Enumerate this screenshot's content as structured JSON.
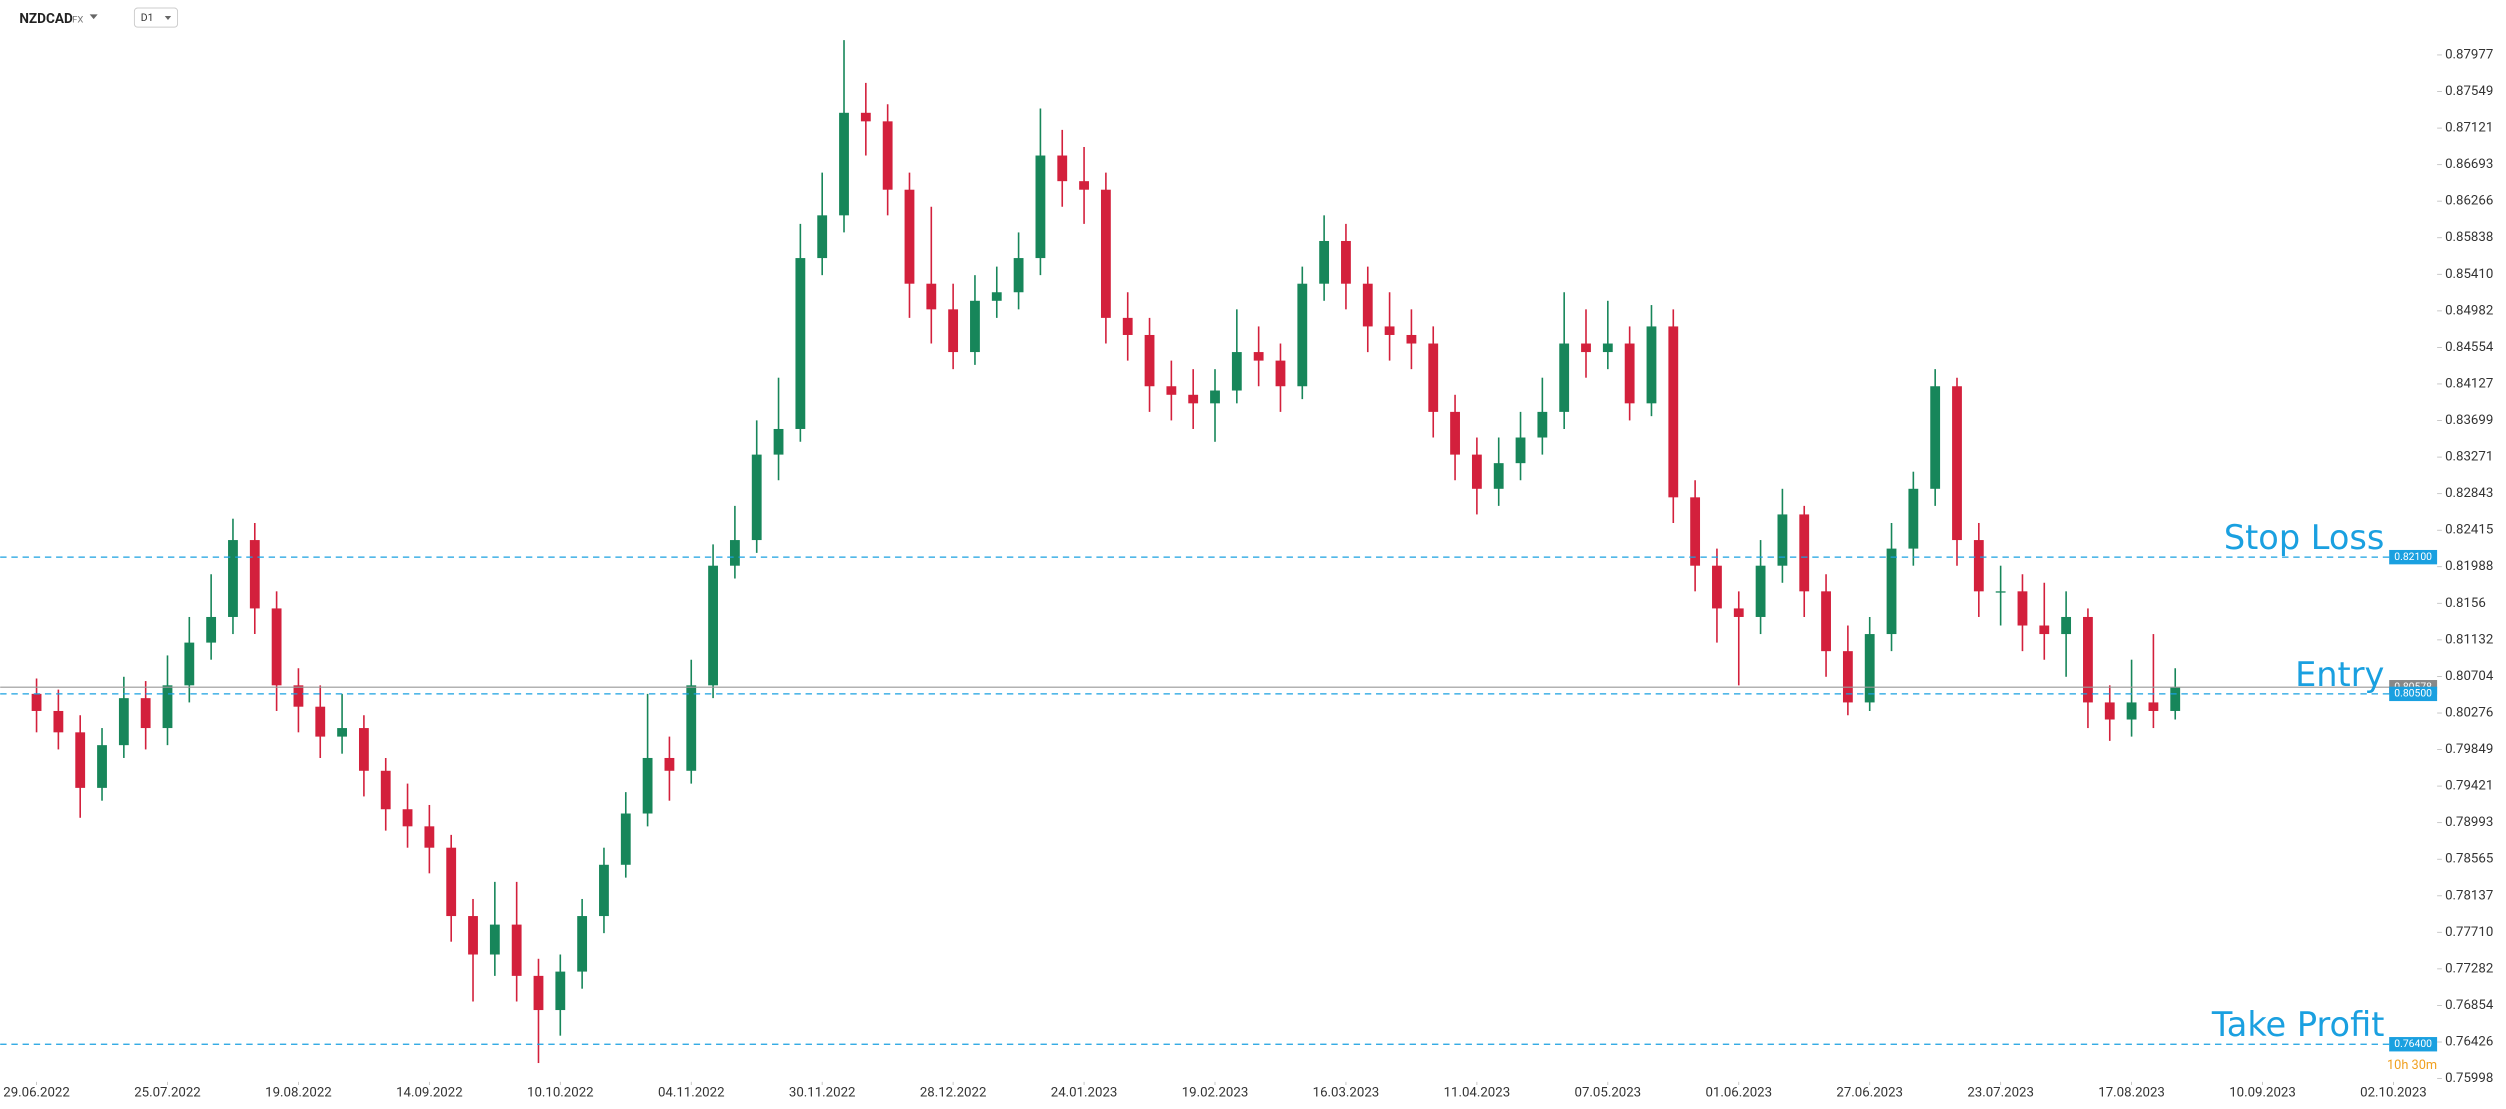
{
  "chart_data": {
    "type": "candlestick",
    "symbol": "NZDCAD",
    "market": "FX",
    "timeframe": "D1",
    "countdown": "10h 30m",
    "up_color": "#17865a",
    "down_color": "#d3203c",
    "xlim": [
      -5,
      330
    ],
    "ylim": [
      0.7596,
      0.8862
    ],
    "xticks": [
      {
        "value": 0,
        "label": "29.06.2022"
      },
      {
        "value": 18,
        "label": "25.07.2022"
      },
      {
        "value": 36,
        "label": "19.08.2022"
      },
      {
        "value": 54,
        "label": "14.09.2022"
      },
      {
        "value": 72,
        "label": "10.10.2022"
      },
      {
        "value": 90,
        "label": "04.11.2022"
      },
      {
        "value": 108,
        "label": "30.11.2022"
      },
      {
        "value": 126,
        "label": "28.12.2022"
      },
      {
        "value": 144,
        "label": "24.01.2023"
      },
      {
        "value": 162,
        "label": "19.02.2023"
      },
      {
        "value": 180,
        "label": "16.03.2023"
      },
      {
        "value": 198,
        "label": "11.04.2023"
      },
      {
        "value": 216,
        "label": "07.05.2023"
      },
      {
        "value": 234,
        "label": "01.06.2023"
      },
      {
        "value": 252,
        "label": "27.06.2023"
      },
      {
        "value": 270,
        "label": "23.07.2023"
      },
      {
        "value": 288,
        "label": "17.08.2023"
      },
      {
        "value": 306,
        "label": "10.09.2023"
      },
      {
        "value": 324,
        "label": "02.10.2023"
      }
    ],
    "yticks": [
      0.87977,
      0.87549,
      0.87121,
      0.86693,
      0.86266,
      0.85838,
      {
        "value": 0.8541,
        "label": "0.85410"
      },
      0.84982,
      0.84554,
      0.84127,
      0.83699,
      0.83271,
      0.82843,
      0.82415,
      0.81988,
      0.8156,
      0.81132,
      0.80704,
      0.80276,
      0.79849,
      0.79421,
      0.78993,
      0.78565,
      0.78137,
      {
        "value": 0.7771,
        "label": "0.77710"
      },
      0.77282,
      0.76854,
      0.76426,
      0.75998
    ],
    "candles": {
      "x": [
        0,
        3,
        6,
        9,
        12,
        15,
        18,
        21,
        24,
        27,
        30,
        33,
        36,
        39,
        42,
        45,
        48,
        51,
        54,
        57,
        60,
        63,
        66,
        69,
        72,
        75,
        78,
        81,
        84,
        87,
        90,
        93,
        96,
        99,
        102,
        105,
        108,
        111,
        114,
        117,
        120,
        123,
        126,
        129,
        132,
        135,
        138,
        141,
        144,
        147,
        150,
        153,
        156,
        159,
        162,
        165,
        168,
        171,
        174,
        177,
        180,
        183,
        186,
        189,
        192,
        195,
        198,
        201,
        204,
        207,
        210,
        213,
        216,
        219,
        222,
        225,
        228,
        231,
        234,
        237,
        240,
        243,
        246,
        249,
        252,
        255,
        258,
        261,
        264,
        267,
        270,
        273,
        276,
        279,
        282,
        285,
        288,
        291,
        294
      ],
      "open": [
        0.805,
        0.803,
        0.8005,
        0.794,
        0.799,
        0.8045,
        0.801,
        0.806,
        0.811,
        0.814,
        0.823,
        0.815,
        0.806,
        0.8035,
        0.8,
        0.801,
        0.796,
        0.7915,
        0.7895,
        0.787,
        0.779,
        0.7745,
        0.778,
        0.772,
        0.768,
        0.7725,
        0.779,
        0.785,
        0.791,
        0.7975,
        0.796,
        0.806,
        0.82,
        0.823,
        0.833,
        0.836,
        0.856,
        0.861,
        0.873,
        0.872,
        0.864,
        0.853,
        0.85,
        0.845,
        0.851,
        0.852,
        0.856,
        0.868,
        0.865,
        0.864,
        0.849,
        0.847,
        0.841,
        0.84,
        0.839,
        0.8405,
        0.845,
        0.844,
        0.841,
        0.853,
        0.858,
        0.853,
        0.848,
        0.847,
        0.846,
        0.838,
        0.833,
        0.829,
        0.832,
        0.835,
        0.838,
        0.846,
        0.845,
        0.846,
        0.839,
        0.848,
        0.828,
        0.82,
        0.815,
        0.814,
        0.82,
        0.826,
        0.817,
        0.81,
        0.804,
        0.812,
        0.822,
        0.829,
        0.841,
        0.823,
        0.817,
        0.817,
        0.813,
        0.812,
        0.814,
        0.804,
        0.802,
        0.804,
        0.803
      ],
      "high": [
        0.8068,
        0.8055,
        0.8025,
        0.801,
        0.807,
        0.8065,
        0.8095,
        0.814,
        0.819,
        0.8255,
        0.825,
        0.817,
        0.808,
        0.806,
        0.805,
        0.8025,
        0.7975,
        0.7945,
        0.792,
        0.7885,
        0.781,
        0.783,
        0.783,
        0.774,
        0.7745,
        0.781,
        0.787,
        0.7935,
        0.805,
        0.8,
        0.809,
        0.8225,
        0.827,
        0.837,
        0.842,
        0.86,
        0.866,
        0.8815,
        0.8765,
        0.874,
        0.866,
        0.862,
        0.853,
        0.854,
        0.855,
        0.859,
        0.8735,
        0.871,
        0.869,
        0.866,
        0.852,
        0.849,
        0.844,
        0.843,
        0.843,
        0.85,
        0.848,
        0.846,
        0.855,
        0.861,
        0.86,
        0.855,
        0.852,
        0.85,
        0.848,
        0.84,
        0.835,
        0.835,
        0.838,
        0.842,
        0.852,
        0.85,
        0.851,
        0.848,
        0.8505,
        0.85,
        0.83,
        0.822,
        0.817,
        0.823,
        0.829,
        0.827,
        0.819,
        0.813,
        0.814,
        0.825,
        0.831,
        0.843,
        0.842,
        0.825,
        0.82,
        0.819,
        0.818,
        0.817,
        0.815,
        0.806,
        0.809,
        0.812,
        0.808
      ],
      "low": [
        0.8005,
        0.7985,
        0.7905,
        0.7925,
        0.7975,
        0.7985,
        0.799,
        0.804,
        0.809,
        0.812,
        0.812,
        0.803,
        0.8005,
        0.7975,
        0.798,
        0.793,
        0.789,
        0.787,
        0.784,
        0.776,
        0.769,
        0.772,
        0.769,
        0.7618,
        0.765,
        0.7705,
        0.777,
        0.7835,
        0.7895,
        0.7925,
        0.7945,
        0.8045,
        0.8185,
        0.8215,
        0.83,
        0.8345,
        0.854,
        0.859,
        0.868,
        0.861,
        0.849,
        0.846,
        0.843,
        0.8435,
        0.849,
        0.85,
        0.854,
        0.862,
        0.86,
        0.846,
        0.844,
        0.838,
        0.837,
        0.836,
        0.8345,
        0.839,
        0.841,
        0.838,
        0.8395,
        0.851,
        0.85,
        0.845,
        0.844,
        0.843,
        0.835,
        0.83,
        0.826,
        0.827,
        0.83,
        0.833,
        0.836,
        0.842,
        0.843,
        0.837,
        0.8375,
        0.825,
        0.817,
        0.811,
        0.806,
        0.812,
        0.818,
        0.814,
        0.807,
        0.8025,
        0.803,
        0.81,
        0.82,
        0.827,
        0.82,
        0.814,
        0.813,
        0.81,
        0.809,
        0.807,
        0.801,
        0.7995,
        0.8,
        0.801,
        0.802
      ],
      "close": [
        0.803,
        0.8005,
        0.794,
        0.799,
        0.8045,
        0.801,
        0.806,
        0.811,
        0.814,
        0.823,
        0.815,
        0.806,
        0.8035,
        0.8,
        0.801,
        0.796,
        0.7915,
        0.7895,
        0.787,
        0.779,
        0.7745,
        0.778,
        0.772,
        0.768,
        0.7725,
        0.779,
        0.785,
        0.791,
        0.7975,
        0.796,
        0.806,
        0.82,
        0.823,
        0.833,
        0.836,
        0.856,
        0.861,
        0.873,
        0.872,
        0.864,
        0.853,
        0.85,
        0.845,
        0.851,
        0.852,
        0.856,
        0.868,
        0.865,
        0.864,
        0.849,
        0.847,
        0.841,
        0.84,
        0.839,
        0.8405,
        0.845,
        0.844,
        0.841,
        0.853,
        0.858,
        0.853,
        0.848,
        0.847,
        0.846,
        0.838,
        0.833,
        0.829,
        0.832,
        0.835,
        0.838,
        0.846,
        0.845,
        0.846,
        0.839,
        0.848,
        0.828,
        0.82,
        0.815,
        0.814,
        0.82,
        0.826,
        0.817,
        0.81,
        0.804,
        0.812,
        0.822,
        0.829,
        0.841,
        0.823,
        0.817,
        0.817,
        0.813,
        0.812,
        0.814,
        0.804,
        0.802,
        0.804,
        0.803,
        0.80578
      ]
    },
    "last_price": {
      "value": 0.80578,
      "label": "0.80578"
    },
    "levels": [
      {
        "name": "Stop Loss",
        "price": {
          "value": 0.821,
          "label": "0.82100"
        },
        "color": "#1aa0e0"
      },
      {
        "name": "Entry",
        "price": {
          "value": 0.805,
          "label": "0.80500"
        },
        "color": "#1aa0e0"
      },
      {
        "name": "Take Profit",
        "price": {
          "value": 0.764,
          "label": "0.76400"
        },
        "color": "#1aa0e0"
      }
    ]
  }
}
